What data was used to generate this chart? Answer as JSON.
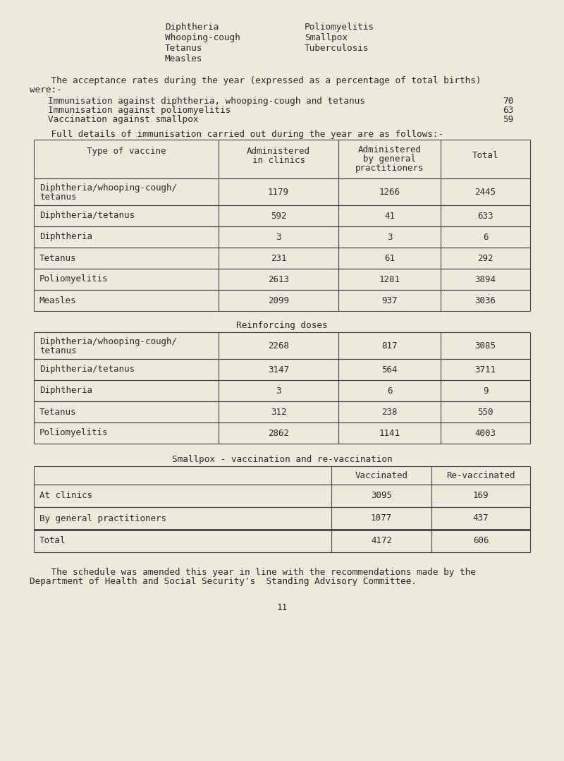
{
  "bg_color": "#ede9dc",
  "text_color": "#2a2a2a",
  "header_items_left": [
    "Diphtheria",
    "Whooping-cough",
    "Tetanus",
    "Measles"
  ],
  "header_items_right": [
    "Poliomyelitis",
    "Smallpox",
    "Tuberculosis"
  ],
  "acceptance_intro_line1": "    The acceptance rates during the year (expressed as a percentage of total births)",
  "acceptance_intro_line2": "were:-",
  "acceptance_rates": [
    [
      "Immunisation against diphtheria, whooping-cough and tetanus",
      "70"
    ],
    [
      "Immunisation against poliomyelitis",
      "63"
    ],
    [
      "Vaccination against smallpox",
      "59"
    ]
  ],
  "full_details_intro": "    Full details of immunisation carried out during the year are as follows:-",
  "table1_headers": [
    "Type of vaccine",
    "Administered\nin clinics",
    "Administered\nby general\npractitioners",
    "Total"
  ],
  "table1_rows": [
    [
      "Diphtheria/whooping-cough/\ntetanus",
      "1179",
      "1266",
      "2445"
    ],
    [
      "Diphtheria/tetanus",
      "592",
      "41",
      "633"
    ],
    [
      "Diphtheria",
      "3",
      "3",
      "6"
    ],
    [
      "Tetanus",
      "231",
      "61",
      "292"
    ],
    [
      "Poliomyelitis",
      "2613",
      "1281",
      "3894"
    ],
    [
      "Measles",
      "2099",
      "937",
      "3036"
    ]
  ],
  "reinforcing_title": "Reinforcing doses",
  "table2_rows": [
    [
      "Diphtheria/whooping-cough/\ntetanus",
      "2268",
      "817",
      "3085"
    ],
    [
      "Diphtheria/tetanus",
      "3147",
      "564",
      "3711"
    ],
    [
      "Diphtheria",
      "3",
      "6",
      "9"
    ],
    [
      "Tetanus",
      "312",
      "238",
      "550"
    ],
    [
      "Poliomyelitis",
      "2862",
      "1141",
      "4003"
    ]
  ],
  "smallpox_title": "Smallpox - vaccination and re-vaccination",
  "table3_headers": [
    "",
    "Vaccinated",
    "Re-vaccinated"
  ],
  "table3_rows": [
    [
      "At clinics",
      "3095",
      "169"
    ],
    [
      "By general practitioners",
      "1077",
      "437"
    ]
  ],
  "table3_total": [
    "Total",
    "4172",
    "606"
  ],
  "footer_line1": "    The schedule was amended this year in line with the recommendations made by the",
  "footer_line2": "Department of Health and Social Security's  Standing Advisory Committee.",
  "page_number": "11"
}
